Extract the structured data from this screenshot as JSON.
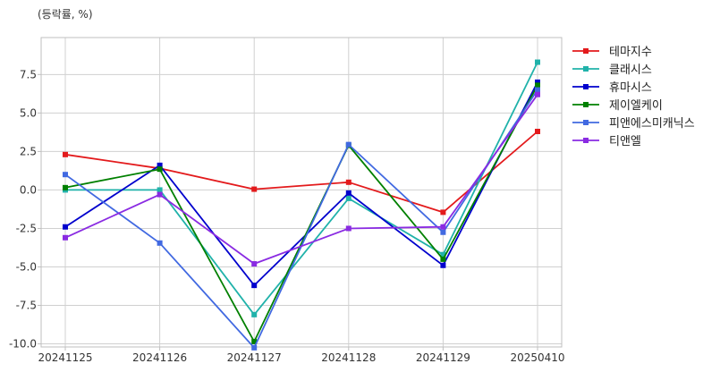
{
  "chart_data": {
    "type": "line",
    "title": "",
    "ylabel": "(등락률, %)",
    "xlabel": "",
    "x": [
      "20241125",
      "20241126",
      "20241127",
      "20241128",
      "20241129",
      "20250410"
    ],
    "ylim": [
      -10.2,
      9.9
    ],
    "yticks": [
      7.5,
      5.0,
      2.5,
      0.0,
      -2.5,
      -5.0,
      -7.5,
      -10.0
    ],
    "ytick_labels": [
      "7.5",
      "5.0",
      "2.5",
      "0.0",
      "-2.5",
      "-5.0",
      "-7.5",
      "-10.0"
    ],
    "grid": true,
    "legend_position": "right",
    "series": [
      {
        "name": "테마지수",
        "color": "#e31a1c",
        "values": [
          2.3,
          1.4,
          0.05,
          0.5,
          -1.45,
          3.8
        ]
      },
      {
        "name": "클래시스",
        "color": "#20b2aa",
        "values": [
          0.0,
          0.0,
          -8.1,
          -0.55,
          -4.2,
          8.3
        ]
      },
      {
        "name": "휴마시스",
        "color": "#0000cd",
        "values": [
          -2.4,
          1.6,
          -6.2,
          -0.2,
          -4.9,
          7.0
        ]
      },
      {
        "name": "제이엘케이",
        "color": "#008000",
        "values": [
          0.15,
          1.35,
          -9.85,
          2.9,
          -4.5,
          6.8
        ]
      },
      {
        "name": "피앤에스미캐닉스",
        "color": "#4169e1",
        "values": [
          1.0,
          -3.45,
          -10.25,
          2.95,
          -2.75,
          6.5
        ]
      },
      {
        "name": "티앤엘",
        "color": "#8a2be2",
        "values": [
          -3.1,
          -0.3,
          -4.8,
          -2.5,
          -2.4,
          6.2
        ]
      }
    ]
  }
}
